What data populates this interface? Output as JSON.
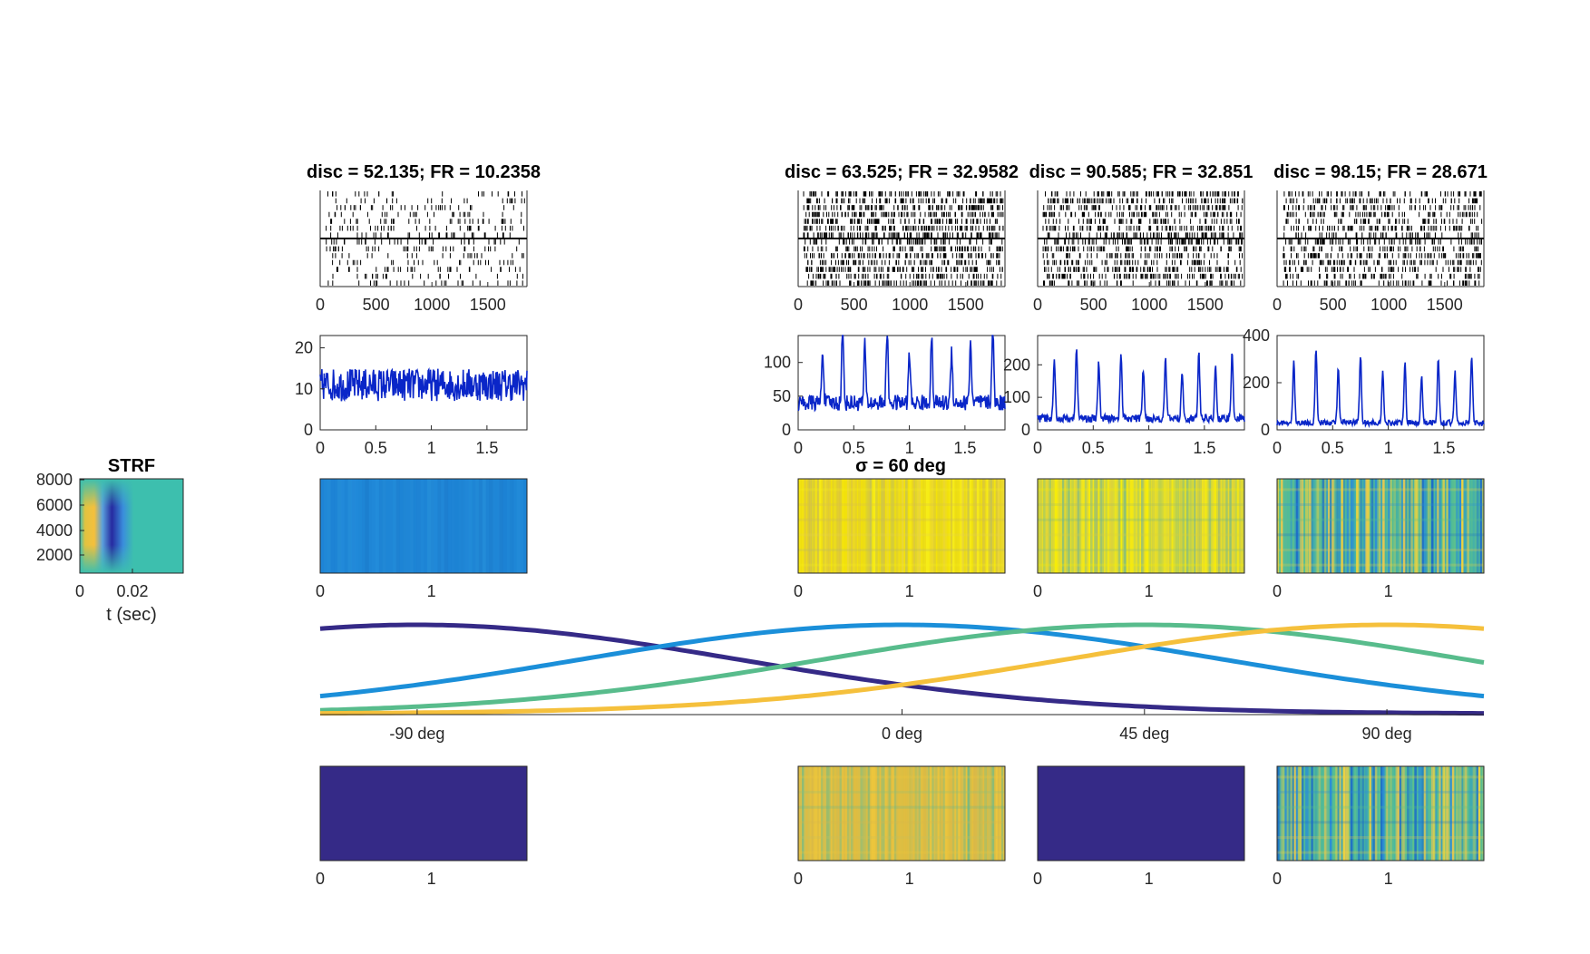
{
  "chart_data": {
    "type": "figure",
    "colors": {
      "trace": "#0a26c8",
      "raster": "#000000",
      "parula_dark": "#352a87",
      "tuning": [
        "#352a87",
        "#1b8fd9",
        "#58bc8c",
        "#f5c03c"
      ],
      "axis": "#262626"
    },
    "strf": {
      "title": "STRF",
      "xlabel": "t (sec)",
      "xticks": [
        "0",
        "0.02"
      ],
      "yticks": [
        "8000",
        "6000",
        "4000",
        "2000"
      ]
    },
    "columns": [
      {
        "title": "disc = 52.135; FR = 10.2358",
        "raster_xticks": [
          "0",
          "500",
          "1000",
          "1500"
        ],
        "raster_density": 0.18,
        "psth": {
          "ylim": [
            0,
            23
          ],
          "yticks": [
            "20",
            "10",
            "0"
          ],
          "xticks": [
            "0",
            "0.5",
            "1",
            "1.5"
          ],
          "baseline": 11,
          "noise": 4,
          "peaks": []
        },
        "spec_xticks": [
          "0",
          "1"
        ],
        "spec_mode": "blue",
        "bottom_xticks": [
          "0",
          "1"
        ],
        "bottom_mode": "dark"
      },
      {
        "title": "disc = 63.525; FR = 32.9582",
        "raster_xticks": [
          "0",
          "500",
          "1000",
          "1500"
        ],
        "raster_density": 0.55,
        "psth": {
          "ylim": [
            0,
            140
          ],
          "yticks": [
            "100",
            "50",
            "0"
          ],
          "xticks": [
            "0",
            "0.5",
            "1",
            "1.5"
          ],
          "baseline": 40,
          "noise": 12,
          "peaks": [
            0.22,
            0.4,
            0.6,
            0.8,
            1.0,
            1.2,
            1.38,
            1.55,
            1.75
          ],
          "peak_height": 125
        },
        "spec_xticks": [
          "0",
          "1"
        ],
        "spec_mode": "yellow-streak",
        "spec_title": "σ = 60 deg",
        "bottom_xticks": [
          "0",
          "1"
        ],
        "bottom_mode": "yellow-green"
      },
      {
        "title": "disc = 90.585; FR = 32.851",
        "raster_xticks": [
          "0",
          "500",
          "1000",
          "1500"
        ],
        "raster_density": 0.5,
        "psth": {
          "ylim": [
            0,
            290
          ],
          "yticks": [
            "200",
            "100",
            "0"
          ],
          "xticks": [
            "0",
            "0.5",
            "1",
            "1.5"
          ],
          "baseline": 35,
          "noise": 12,
          "peaks": [
            0.15,
            0.35,
            0.55,
            0.75,
            0.95,
            1.15,
            1.3,
            1.45,
            1.6,
            1.75
          ],
          "peak_height": 230
        },
        "spec_xticks": [
          "0",
          "1"
        ],
        "spec_mode": "yellow-mix",
        "bottom_xticks": [
          "0",
          "1"
        ],
        "bottom_mode": "dark"
      },
      {
        "title": "disc = 98.15; FR = 28.671",
        "raster_xticks": [
          "0",
          "500",
          "1000",
          "1500"
        ],
        "raster_density": 0.45,
        "psth": {
          "ylim": [
            0,
            400
          ],
          "yticks": [
            "400",
            "200",
            "0"
          ],
          "xticks": [
            "0",
            "0.5",
            "1",
            "1.5"
          ],
          "baseline": 30,
          "noise": 12,
          "peaks": [
            0.15,
            0.35,
            0.55,
            0.75,
            0.95,
            1.15,
            1.3,
            1.45,
            1.6,
            1.75
          ],
          "peak_height": 320
        },
        "spec_xticks": [
          "0",
          "1"
        ],
        "spec_mode": "green-streak",
        "bottom_xticks": [
          "0",
          "1"
        ],
        "bottom_mode": "green-streak"
      }
    ],
    "tuning": {
      "xticks": [
        {
          "label": "-90 deg",
          "value": -90
        },
        {
          "label": "0 deg",
          "value": 0
        },
        {
          "label": "45 deg",
          "value": 45
        },
        {
          "label": "90 deg",
          "value": 90
        }
      ],
      "xlim": [
        -108,
        108
      ],
      "sigma_deg": 60,
      "centers": [
        -90,
        0,
        45,
        90
      ]
    }
  }
}
